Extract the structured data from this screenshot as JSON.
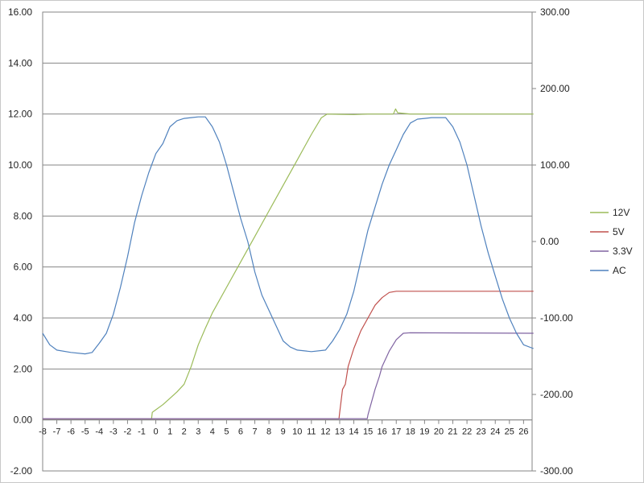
{
  "chart_data": {
    "type": "line",
    "title": "",
    "xlabel": "",
    "ylabel": "",
    "grid": true,
    "legend_position": "right",
    "xlim": [
      -8,
      26.7
    ],
    "ylim": [
      -2,
      16
    ],
    "y2lim": [
      -300,
      300
    ],
    "x_ticks": [
      "-8",
      "-7",
      "-6",
      "-5",
      "-4",
      "-3",
      "-2",
      "-1",
      "0",
      "1",
      "2",
      "3",
      "4",
      "5",
      "6",
      "7",
      "8",
      "9",
      "10",
      "11",
      "12",
      "13",
      "14",
      "15",
      "16",
      "17",
      "18",
      "19",
      "20",
      "21",
      "22",
      "23",
      "24",
      "25",
      "26"
    ],
    "y_ticks": [
      "-2.00",
      "0.00",
      "2.00",
      "4.00",
      "6.00",
      "8.00",
      "10.00",
      "12.00",
      "14.00",
      "16.00"
    ],
    "y2_ticks": [
      "-300.00",
      "-200.00",
      "-100.00",
      "0.00",
      "100.00",
      "200.00",
      "300.00"
    ],
    "series": [
      {
        "name": "12V",
        "color": "#9bbb59",
        "axis": "left",
        "points": [
          [
            -8,
            0.05
          ],
          [
            -0.3,
            0.05
          ],
          [
            -0.25,
            0.3
          ],
          [
            0,
            0.4
          ],
          [
            0.5,
            0.6
          ],
          [
            1,
            0.85
          ],
          [
            1.5,
            1.1
          ],
          [
            2,
            1.4
          ],
          [
            2.5,
            2.1
          ],
          [
            3,
            2.95
          ],
          [
            3.5,
            3.6
          ],
          [
            4,
            4.2
          ],
          [
            5,
            5.2
          ],
          [
            6,
            6.2
          ],
          [
            7,
            7.2
          ],
          [
            8,
            8.2
          ],
          [
            9,
            9.2
          ],
          [
            10,
            10.2
          ],
          [
            11,
            11.2
          ],
          [
            11.7,
            11.85
          ],
          [
            12.1,
            12.0
          ],
          [
            13,
            11.99
          ],
          [
            14,
            11.98
          ],
          [
            15,
            12.0
          ],
          [
            16,
            12.0
          ],
          [
            16.8,
            12.0
          ],
          [
            16.95,
            12.2
          ],
          [
            17.1,
            12.05
          ],
          [
            18,
            12.0
          ],
          [
            26.7,
            12.0
          ]
        ]
      },
      {
        "name": "5V",
        "color": "#c0504d",
        "axis": "left",
        "points": [
          [
            -8,
            0.05
          ],
          [
            12.95,
            0.05
          ],
          [
            13,
            0.3
          ],
          [
            13.2,
            1.2
          ],
          [
            13.4,
            1.4
          ],
          [
            13.6,
            2.1
          ],
          [
            14,
            2.8
          ],
          [
            14.5,
            3.5
          ],
          [
            15,
            4.0
          ],
          [
            15.5,
            4.5
          ],
          [
            16,
            4.8
          ],
          [
            16.5,
            5.0
          ],
          [
            17,
            5.05
          ],
          [
            26.7,
            5.05
          ]
        ]
      },
      {
        "name": "3.3V",
        "color": "#8064a2",
        "axis": "left",
        "points": [
          [
            -8,
            0.05
          ],
          [
            14.95,
            0.05
          ],
          [
            15,
            0.2
          ],
          [
            15.3,
            0.8
          ],
          [
            15.5,
            1.2
          ],
          [
            15.8,
            1.7
          ],
          [
            16,
            2.1
          ],
          [
            16.5,
            2.7
          ],
          [
            17,
            3.15
          ],
          [
            17.5,
            3.4
          ],
          [
            18,
            3.42
          ],
          [
            26.7,
            3.4
          ]
        ]
      },
      {
        "name": "AC",
        "color": "#4f81bd",
        "axis": "right",
        "points": [
          [
            -8,
            -120
          ],
          [
            -7.5,
            -135
          ],
          [
            -7,
            -142
          ],
          [
            -6,
            -145
          ],
          [
            -5,
            -147
          ],
          [
            -4.5,
            -145
          ],
          [
            -4,
            -133
          ],
          [
            -3.5,
            -120
          ],
          [
            -3,
            -95
          ],
          [
            -2.5,
            -60
          ],
          [
            -2,
            -20
          ],
          [
            -1.5,
            25
          ],
          [
            -1,
            60
          ],
          [
            -0.5,
            90
          ],
          [
            0,
            115
          ],
          [
            0.5,
            128
          ],
          [
            1,
            150
          ],
          [
            1.5,
            158
          ],
          [
            2,
            161
          ],
          [
            2.5,
            162
          ],
          [
            3,
            163
          ],
          [
            3.5,
            163
          ],
          [
            4,
            150
          ],
          [
            4.5,
            130
          ],
          [
            5,
            100
          ],
          [
            5.5,
            65
          ],
          [
            6,
            30
          ],
          [
            6.5,
            0
          ],
          [
            7,
            -40
          ],
          [
            7.5,
            -70
          ],
          [
            8,
            -90
          ],
          [
            8.5,
            -110
          ],
          [
            9,
            -130
          ],
          [
            9.5,
            -138
          ],
          [
            10,
            -142
          ],
          [
            11,
            -144
          ],
          [
            12,
            -142
          ],
          [
            12.5,
            -130
          ],
          [
            13,
            -115
          ],
          [
            13.5,
            -95
          ],
          [
            14,
            -65
          ],
          [
            14.5,
            -25
          ],
          [
            15,
            15
          ],
          [
            15.5,
            45
          ],
          [
            16,
            75
          ],
          [
            16.5,
            100
          ],
          [
            17,
            120
          ],
          [
            17.5,
            140
          ],
          [
            18,
            155
          ],
          [
            18.5,
            160
          ],
          [
            19,
            161
          ],
          [
            19.5,
            162
          ],
          [
            20,
            162
          ],
          [
            20.5,
            162
          ],
          [
            21,
            150
          ],
          [
            21.5,
            130
          ],
          [
            22,
            100
          ],
          [
            22.5,
            60
          ],
          [
            23,
            20
          ],
          [
            23.5,
            -15
          ],
          [
            24,
            -45
          ],
          [
            24.5,
            -75
          ],
          [
            25,
            -100
          ],
          [
            25.5,
            -120
          ],
          [
            26,
            -135
          ],
          [
            26.7,
            -140
          ]
        ]
      }
    ]
  }
}
